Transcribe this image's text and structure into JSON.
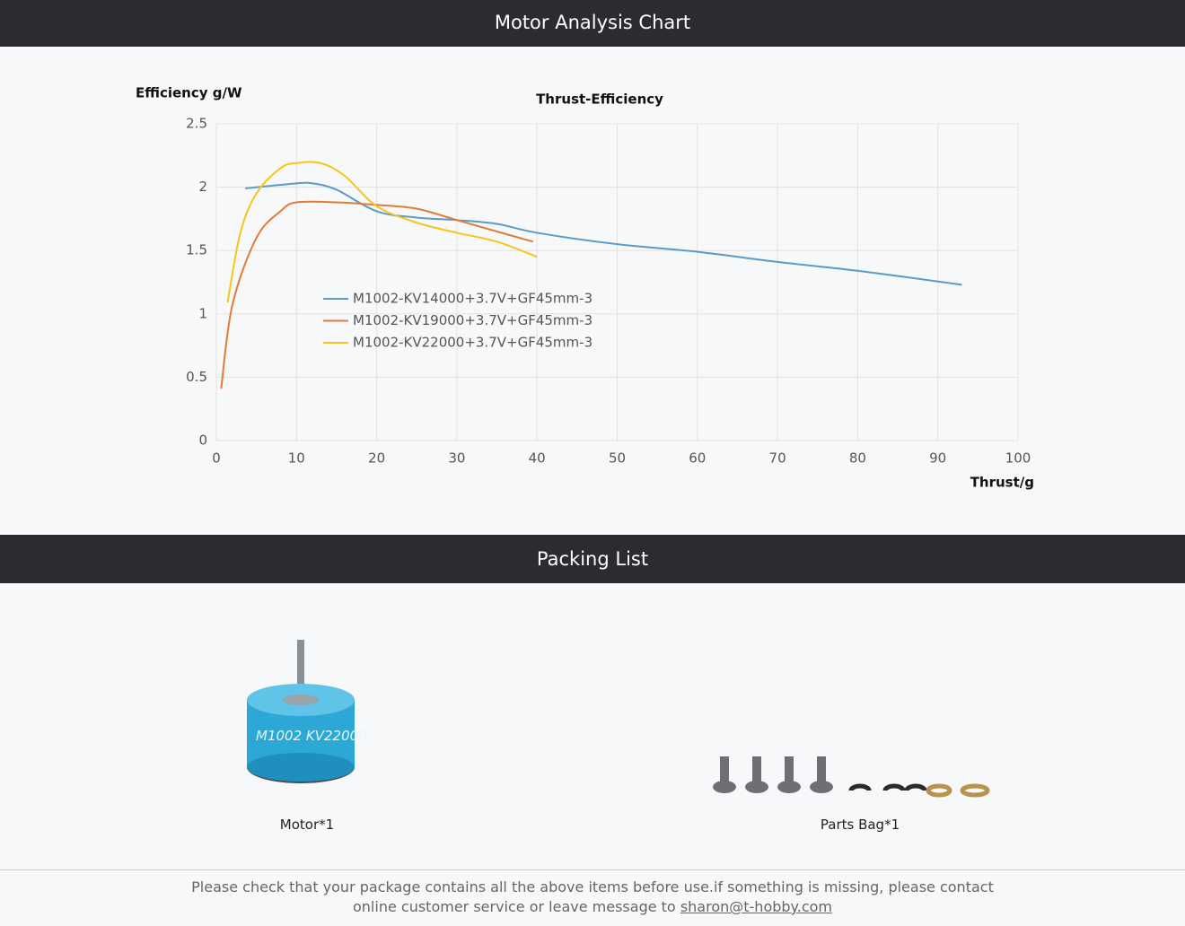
{
  "headers": {
    "chart": "Motor Analysis Chart",
    "packing": "Packing List"
  },
  "chart_data": {
    "type": "line",
    "title": "Thrust-Efficiency",
    "y_label": "Efficiency g/W",
    "x_label": "Thrust/g",
    "xlim": [
      0,
      100
    ],
    "xticks": [
      0,
      10,
      20,
      30,
      40,
      50,
      60,
      70,
      80,
      90,
      100
    ],
    "ylim": [
      0,
      2.5
    ],
    "yticks": [
      0,
      0.5,
      1,
      1.5,
      2,
      2.5
    ],
    "grid": true,
    "smooth": true,
    "series": [
      {
        "name": "M1002-KV14000+3.7V+GF45mm-3",
        "color": "#5b9bc8",
        "x": [
          3.6,
          10,
          12,
          15,
          20,
          25,
          30,
          35,
          40,
          50,
          60,
          70,
          80,
          93
        ],
        "values": [
          1.99,
          2.03,
          2.03,
          1.98,
          1.81,
          1.76,
          1.74,
          1.71,
          1.64,
          1.55,
          1.49,
          1.41,
          1.34,
          1.23
        ]
      },
      {
        "name": "M1002-KV19000+3.7V+GF45mm-3",
        "color": "#e07b39",
        "x": [
          0.6,
          2,
          5,
          8,
          10,
          15,
          20,
          25,
          30,
          35,
          39.5
        ],
        "values": [
          0.41,
          1.07,
          1.6,
          1.81,
          1.88,
          1.88,
          1.86,
          1.83,
          1.74,
          1.65,
          1.57
        ]
      },
      {
        "name": "M1002-KV22000+3.7V+GF45mm-3",
        "color": "#f5c518",
        "x": [
          1.4,
          3,
          5,
          8,
          10,
          13,
          16,
          20,
          25,
          30,
          35,
          40
        ],
        "values": [
          1.09,
          1.64,
          1.95,
          2.15,
          2.19,
          2.19,
          2.09,
          1.85,
          1.72,
          1.64,
          1.57,
          1.45
        ]
      }
    ]
  },
  "packing_list": {
    "items": [
      {
        "label": "Motor*1"
      },
      {
        "label": "Parts Bag*1"
      }
    ]
  },
  "footer": {
    "text": "Please check that your package contains all the above items before use.if something is missing, please contact online customer service or leave message to",
    "email": "sharon@t-hobby.com"
  }
}
